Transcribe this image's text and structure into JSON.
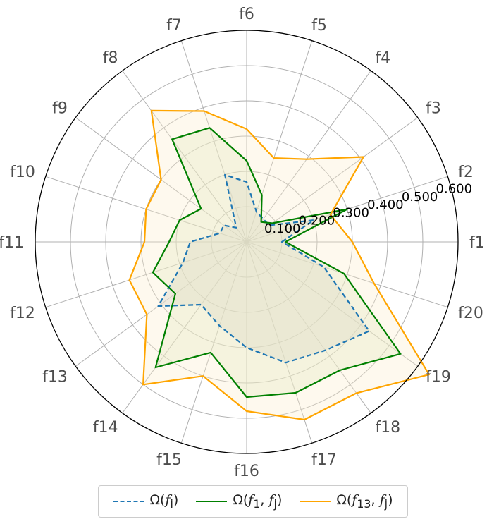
{
  "chart_data": {
    "type": "radar",
    "categories": [
      "f1",
      "f2",
      "f3",
      "f4",
      "f5",
      "f6",
      "f7",
      "f8",
      "f9",
      "f10",
      "f11",
      "f12",
      "f13",
      "f14",
      "f15",
      "f16",
      "f17",
      "f18",
      "f19",
      "f20"
    ],
    "radial_ticks": [
      "0.100",
      "0.200",
      "0.300",
      "0.400",
      "0.500",
      "0.600"
    ],
    "rlim": [
      0,
      0.6
    ],
    "grid": true,
    "legend_position": "bottom-center",
    "series": [
      {
        "name": "Ω(f_i)",
        "legend_html": "Ω(<i>f</i><sub>i</sub>)",
        "color": "#1f77b4",
        "dash": "7,4",
        "fill": "#cfcfcf",
        "fill_opacity": 0.45,
        "values": [
          0.1,
          0.2,
          0.08,
          0.08,
          0.09,
          0.17,
          0.2,
          0.05,
          0.08,
          0.08,
          0.16,
          0.19,
          0.31,
          0.22,
          0.25,
          0.3,
          0.36,
          0.38,
          0.43,
          0.23
        ]
      },
      {
        "name": "Ω(f_1, f_j)",
        "legend_html": "Ω(<i>f</i><sub>1</sub>, <i>f</i><sub>j</sub>)",
        "color": "#008000",
        "dash": "",
        "fill": "#d6e4b6",
        "fill_opacity": 0.35,
        "values": [
          0.11,
          0.3,
          0.09,
          0.07,
          0.14,
          0.23,
          0.34,
          0.36,
          0.16,
          0.2,
          0.22,
          0.28,
          0.25,
          0.44,
          0.33,
          0.44,
          0.45,
          0.45,
          0.54,
          0.29
        ]
      },
      {
        "name": "Ω(f_13, f_j)",
        "legend_html": "Ω(<i>f</i><sub>13</sub>, <i>f</i><sub>j</sub>)",
        "color": "#ffa500",
        "dash": "",
        "fill": "#fbefcf",
        "fill_opacity": 0.35,
        "values": [
          0.3,
          0.25,
          0.41,
          0.29,
          0.25,
          0.32,
          0.39,
          0.46,
          0.3,
          0.3,
          0.29,
          0.35,
          0.35,
          0.5,
          0.4,
          0.48,
          0.53,
          0.53,
          0.64,
          0.38
        ]
      }
    ]
  }
}
